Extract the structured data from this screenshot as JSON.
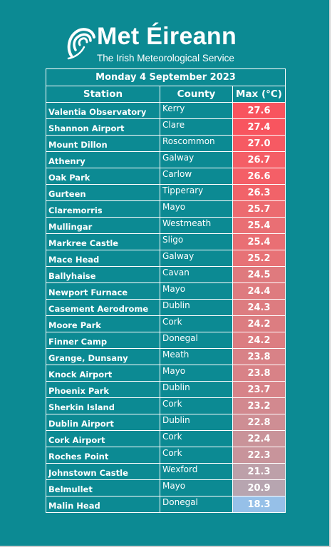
{
  "logo": {
    "icon": "met-eireann-swirl-icon",
    "title": "Met Éireann",
    "subtitle": "The Irish Meteorological Service"
  },
  "table": {
    "date": "Monday 4 September 2023",
    "headers": {
      "station": "Station",
      "county": "County",
      "max": "Max (°C)"
    },
    "rows": [
      {
        "station": "Valentia Observatory",
        "county": "Kerry",
        "max": "27.6",
        "color": "#f8545e"
      },
      {
        "station": "Shannon Airport",
        "county": "Clare",
        "max": "27.4",
        "color": "#f8555f"
      },
      {
        "station": "Mount Dillon",
        "county": "Roscommon",
        "max": "27.0",
        "color": "#f65a63"
      },
      {
        "station": "Athenry",
        "county": "Galway",
        "max": "26.7",
        "color": "#f45e66"
      },
      {
        "station": "Oak Park",
        "county": "Carlow",
        "max": "26.6",
        "color": "#f45f67"
      },
      {
        "station": "Gurteen",
        "county": "Tipperary",
        "max": "26.3",
        "color": "#f16369"
      },
      {
        "station": "Claremorris",
        "county": "Mayo",
        "max": "25.7",
        "color": "#ec6b70"
      },
      {
        "station": "Mullingar",
        "county": "Westmeath",
        "max": "25.4",
        "color": "#e96f74"
      },
      {
        "station": "Markree Castle",
        "county": "Sligo",
        "max": "25.4",
        "color": "#e96f74"
      },
      {
        "station": "Mace Head",
        "county": "Galway",
        "max": "25.2",
        "color": "#e77276"
      },
      {
        "station": "Ballyhaise",
        "county": "Cavan",
        "max": "24.5",
        "color": "#df7a7e"
      },
      {
        "station": "Newport Furnace",
        "county": "Mayo",
        "max": "24.4",
        "color": "#de7b7f"
      },
      {
        "station": "Casement Aerodrome",
        "county": "Dublin",
        "max": "24.3",
        "color": "#dd7c80"
      },
      {
        "station": "Moore Park",
        "county": "Cork",
        "max": "24.2",
        "color": "#dc7d81"
      },
      {
        "station": "Finner Camp",
        "county": "Donegal",
        "max": "24.2",
        "color": "#dc7d81"
      },
      {
        "station": "Grange, Dunsany",
        "county": "Meath",
        "max": "23.8",
        "color": "#d88287"
      },
      {
        "station": "Knock Airport",
        "county": "Mayo",
        "max": "23.8",
        "color": "#d88287"
      },
      {
        "station": "Phoenix Park",
        "county": "Dublin",
        "max": "23.7",
        "color": "#d78388"
      },
      {
        "station": "Sherkin Island",
        "county": "Cork",
        "max": "23.2",
        "color": "#d2898f"
      },
      {
        "station": "Dublin Airport",
        "county": "Dublin",
        "max": "22.8",
        "color": "#ce8e94"
      },
      {
        "station": "Cork Airport",
        "county": "Cork",
        "max": "22.4",
        "color": "#c99399"
      },
      {
        "station": "Roches Point",
        "county": "Cork",
        "max": "22.3",
        "color": "#c8949b"
      },
      {
        "station": "Johnstown Castle",
        "county": "Wexford",
        "max": "21.3",
        "color": "#bda0a9"
      },
      {
        "station": "Belmullet",
        "county": "Mayo",
        "max": "20.9",
        "color": "#b7a5b0"
      },
      {
        "station": "Malin Head",
        "county": "Donegal",
        "max": "18.3",
        "color": "#96c0e8"
      }
    ]
  }
}
